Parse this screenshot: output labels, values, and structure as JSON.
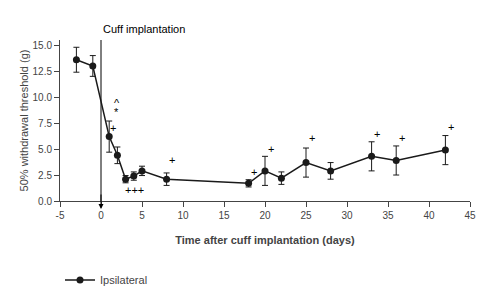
{
  "chart_data": {
    "type": "line",
    "x": [
      -3,
      -1,
      1,
      2,
      3,
      4,
      5,
      8,
      18,
      20,
      22,
      25,
      28,
      33,
      36,
      42
    ],
    "series": [
      {
        "name": "Ipsilateral",
        "color": "#1a1a1a",
        "marker": "circle",
        "line_style": "solid",
        "values": [
          13.6,
          13.0,
          6.2,
          4.4,
          2.1,
          2.4,
          2.9,
          2.1,
          1.7,
          2.9,
          2.2,
          3.7,
          2.9,
          4.3,
          3.9,
          4.9
        ],
        "errors": [
          1.2,
          1.0,
          1.5,
          0.8,
          0.35,
          0.4,
          0.45,
          0.6,
          0.35,
          1.4,
          0.6,
          1.4,
          0.8,
          1.4,
          1.4,
          1.4
        ]
      }
    ],
    "xlabel": "Time after cuff implantation (days)",
    "ylabel": "50% withdrawal threshold (g)",
    "xlim": [
      -5,
      45
    ],
    "ylim": [
      0.0,
      15.5
    ],
    "xticks": [
      -5,
      0,
      5,
      10,
      15,
      20,
      25,
      30,
      35,
      40,
      45
    ],
    "yticks": [
      {
        "value": 0,
        "label": "0.0"
      },
      2.5,
      {
        "value": 5,
        "label": "5.0"
      },
      7.5,
      {
        "value": 10,
        "label": "10.0"
      },
      12.5,
      {
        "value": 15,
        "label": "15.0"
      }
    ],
    "grid": false,
    "legend": "bottom",
    "vline": {
      "x": 0,
      "label": "Cuff implantation"
    },
    "annotations": [
      {
        "x": 1.3,
        "y": 8.7,
        "text": "^"
      },
      {
        "x": 1.3,
        "y": 7.8,
        "text": "*"
      },
      {
        "x": 0.9,
        "y": 6.3,
        "text": "+"
      },
      {
        "x": 2.7,
        "y": 0.25,
        "text": "+++"
      },
      {
        "x": 8.1,
        "y": 3.15,
        "text": "+"
      },
      {
        "x": 18.1,
        "y": 2.0,
        "text": "+"
      },
      {
        "x": 20.1,
        "y": 4.25,
        "text": "+"
      },
      {
        "x": 25.1,
        "y": 5.3,
        "text": "+"
      },
      {
        "x": 33.1,
        "y": 5.7,
        "text": "+"
      },
      {
        "x": 36.1,
        "y": 5.25,
        "text": "+"
      },
      {
        "x": 42.1,
        "y": 6.35,
        "text": "+"
      }
    ]
  }
}
